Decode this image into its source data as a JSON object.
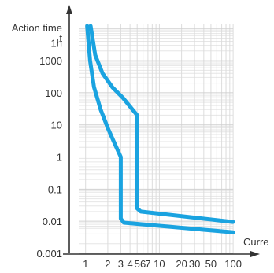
{
  "chart_data": {
    "type": "line",
    "title": "",
    "ylabel_lines": [
      "Action time",
      "t"
    ],
    "xlabel": "Curre",
    "x_scale": "log",
    "y_scale": "log",
    "xlim": [
      0.75,
      110
    ],
    "ylim": [
      0.001,
      25000
    ],
    "grid": true,
    "x_ticks": [
      {
        "label": "1",
        "value": 1
      },
      {
        "label": "2",
        "value": 2
      },
      {
        "label": "3",
        "value": 3
      },
      {
        "label": "4",
        "value": 4
      },
      {
        "label": "5",
        "value": 5
      },
      {
        "label": "6",
        "value": 6
      },
      {
        "label": "7",
        "value": 7
      },
      {
        "label": "10",
        "value": 10
      },
      {
        "label": "20",
        "value": 20
      },
      {
        "label": "30",
        "value": 30
      },
      {
        "label": "50",
        "value": 50
      },
      {
        "label": "100",
        "value": 100
      }
    ],
    "y_ticks": [
      {
        "label": "1h",
        "value": 3600
      },
      {
        "label": "1000",
        "value": 1000
      },
      {
        "label": "100",
        "value": 100
      },
      {
        "label": "10",
        "value": 10
      },
      {
        "label": "1",
        "value": 1
      },
      {
        "label": "0.1",
        "value": 0.1
      },
      {
        "label": "0.01",
        "value": 0.01
      },
      {
        "label": "0.001",
        "value": 0.001
      }
    ],
    "series": [
      {
        "color": "#1aa3e0",
        "points": [
          [
            1.05,
            12000
          ],
          [
            1.15,
            1000
          ],
          [
            1.3,
            150
          ],
          [
            1.6,
            30
          ],
          [
            2.0,
            8
          ],
          [
            2.5,
            2.5
          ],
          [
            3.0,
            1
          ],
          [
            3.0,
            0.012
          ],
          [
            3.3,
            0.009
          ],
          [
            100,
            0.0045
          ]
        ]
      },
      {
        "color": "#1aa3e0",
        "points": [
          [
            1.17,
            12000
          ],
          [
            1.35,
            1500
          ],
          [
            1.7,
            400
          ],
          [
            2.3,
            150
          ],
          [
            3.2,
            70
          ],
          [
            5.0,
            20
          ],
          [
            5.0,
            0.025
          ],
          [
            5.6,
            0.02
          ],
          [
            100,
            0.0095
          ]
        ]
      }
    ]
  }
}
